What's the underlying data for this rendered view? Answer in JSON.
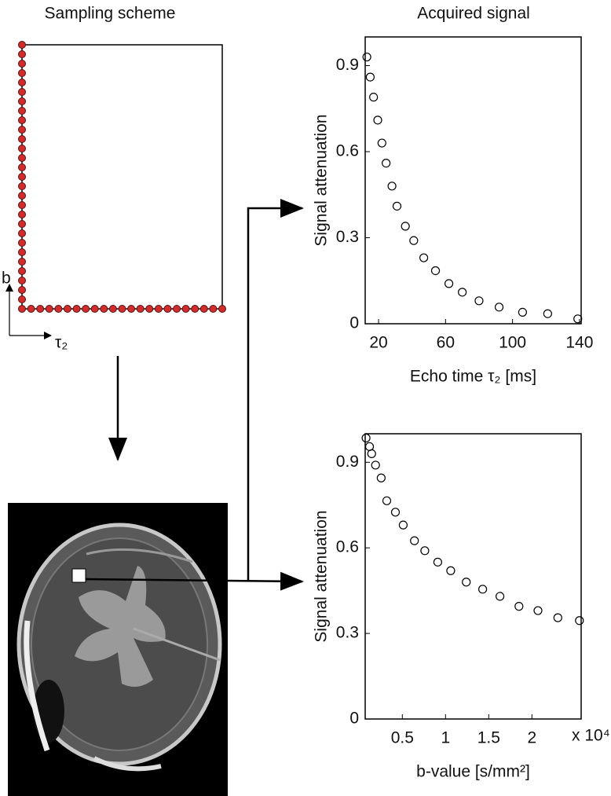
{
  "chart_data": [
    {
      "type": "scatter",
      "title": "Sampling scheme",
      "x_label": "τ₂",
      "y_label": "b",
      "color": "#d42a2a",
      "filled": true,
      "xlim": [
        0,
        22
      ],
      "ylim": [
        0,
        28
      ],
      "x": [
        0,
        0,
        0,
        0,
        0,
        0,
        0,
        0,
        0,
        0,
        0,
        0,
        0,
        0,
        0,
        0,
        0,
        0,
        0,
        0,
        0,
        0,
        0,
        0,
        0,
        0,
        0,
        0,
        0,
        1,
        2,
        3,
        4,
        5,
        6,
        7,
        8,
        9,
        10,
        11,
        12,
        13,
        14,
        15,
        16,
        17,
        18,
        19,
        20,
        21,
        22
      ],
      "y": [
        0,
        1,
        2,
        3,
        4,
        5,
        6,
        7,
        8,
        9,
        10,
        11,
        12,
        13,
        14,
        15,
        16,
        17,
        18,
        19,
        20,
        21,
        22,
        23,
        24,
        25,
        26,
        27,
        28,
        0,
        0,
        0,
        0,
        0,
        0,
        0,
        0,
        0,
        0,
        0,
        0,
        0,
        0,
        0,
        0,
        0,
        0,
        0,
        0,
        0,
        0
      ]
    },
    {
      "type": "scatter",
      "title": "Acquired signal",
      "x_label": "Echo time τ₂ [ms]",
      "y_label": "Signal attenuation",
      "color": "#000000",
      "filled": false,
      "xlim": [
        12,
        141
      ],
      "ylim": [
        0,
        1
      ],
      "xticks": [
        20,
        60,
        100,
        140
      ],
      "yticks": [
        0,
        0.3,
        0.6,
        0.9
      ],
      "x": [
        13,
        15,
        17,
        19.5,
        22,
        24.5,
        28,
        31,
        36,
        41,
        47,
        54,
        62,
        70,
        80,
        92,
        106,
        121,
        139
      ],
      "y": [
        0.93,
        0.86,
        0.79,
        0.71,
        0.63,
        0.56,
        0.48,
        0.41,
        0.34,
        0.29,
        0.23,
        0.185,
        0.14,
        0.11,
        0.08,
        0.058,
        0.04,
        0.035,
        0.017
      ]
    },
    {
      "type": "scatter",
      "x_label": "b-value [s/mm²]",
      "y_label": "Signal attenuation",
      "x_multiplier": "x 10⁴",
      "color": "#000000",
      "filled": false,
      "xlim": [
        0.07,
        2.57
      ],
      "ylim": [
        0,
        1
      ],
      "xticks": [
        0.5,
        1,
        1.5,
        2
      ],
      "yticks": [
        0,
        0.3,
        0.6,
        0.9
      ],
      "x": [
        0.08,
        0.12,
        0.145,
        0.19,
        0.255,
        0.32,
        0.42,
        0.51,
        0.64,
        0.76,
        0.91,
        1.06,
        1.24,
        1.43,
        1.63,
        1.85,
        2.07,
        2.3,
        2.55
      ],
      "y": [
        0.985,
        0.955,
        0.93,
        0.89,
        0.845,
        0.765,
        0.725,
        0.68,
        0.625,
        0.59,
        0.55,
        0.52,
        0.48,
        0.455,
        0.43,
        0.395,
        0.38,
        0.355,
        0.345
      ]
    }
  ]
}
